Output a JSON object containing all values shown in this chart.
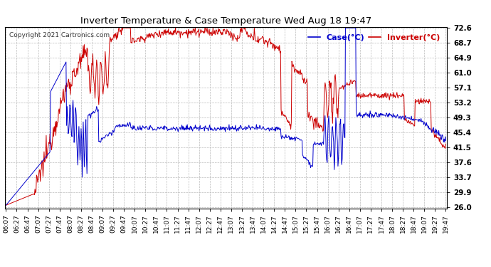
{
  "title": "Inverter Temperature & Case Temperature Wed Aug 18 19:47",
  "copyright": "Copyright 2021 Cartronics.com",
  "legend_case": "Case(°C)",
  "legend_inverter": "Inverter(°C)",
  "yticks": [
    26.0,
    29.9,
    33.7,
    37.6,
    41.5,
    45.4,
    49.3,
    53.2,
    57.1,
    61.0,
    64.9,
    68.7,
    72.6
  ],
  "ymin": 26.0,
  "ymax": 72.6,
  "background_color": "#ffffff",
  "grid_color": "#bbbbbb",
  "grid_style": "--",
  "inverter_color": "#cc0000",
  "case_color": "#0000cc",
  "title_color": "#000000",
  "legend_case_color": "#0000cc",
  "legend_inverter_color": "#cc0000",
  "copyright_color": "#333333",
  "tick_label_color": "#000000",
  "linewidth": 0.7
}
